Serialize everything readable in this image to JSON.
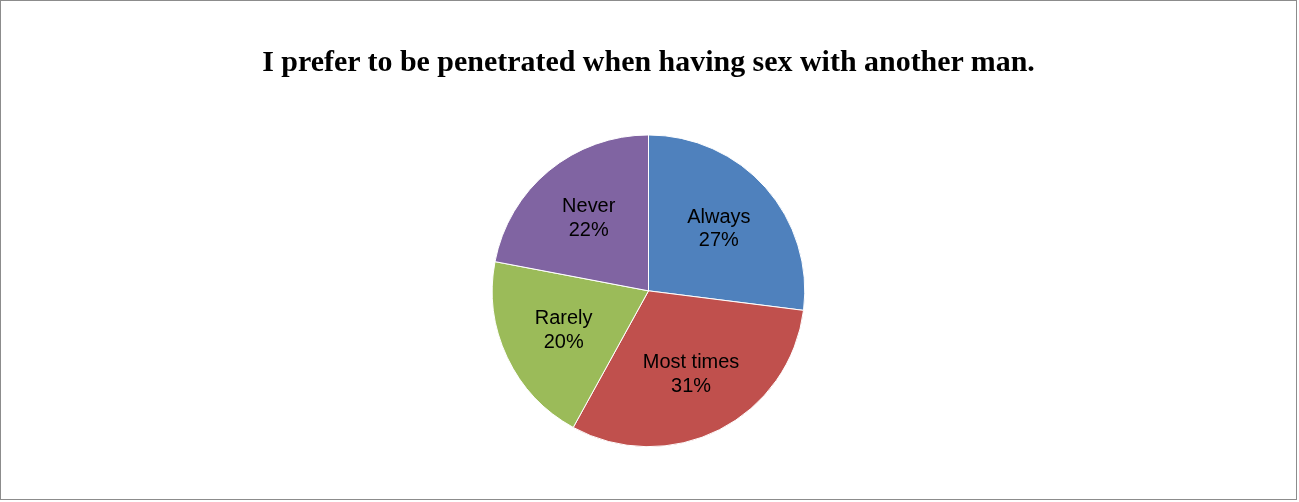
{
  "chart_data": {
    "type": "pie",
    "title": "I prefer to be penetrated when having sex with another man.",
    "categories": [
      "Always",
      "Most times",
      "Rarely",
      "Never"
    ],
    "values": [
      27,
      31,
      20,
      22
    ],
    "colors": [
      "#4f81bd",
      "#c0504d",
      "#9bbb59",
      "#8064a2"
    ],
    "value_labels": [
      "27%",
      "31%",
      "20%",
      "22%"
    ],
    "legend": false
  }
}
